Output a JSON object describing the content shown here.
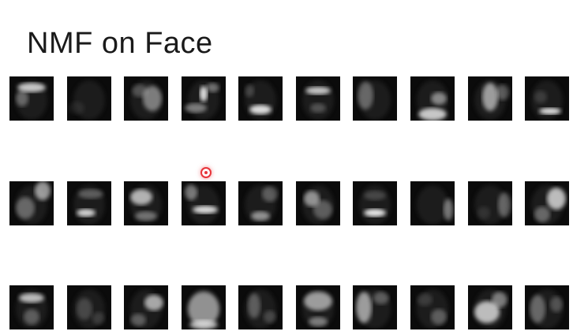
{
  "slide": {
    "title": "NMF on Face"
  },
  "face_grid": {
    "rows": 3,
    "columns": 10,
    "tile_background": "#0b0b0b",
    "highlight_color": "#f2f2f2",
    "components": [
      "basis-image-1",
      "basis-image-2",
      "basis-image-3",
      "basis-image-4",
      "basis-image-5",
      "basis-image-6",
      "basis-image-7",
      "basis-image-8",
      "basis-image-9",
      "basis-image-10",
      "basis-image-11",
      "basis-image-12",
      "basis-image-13",
      "basis-image-14",
      "basis-image-15",
      "basis-image-16",
      "basis-image-17",
      "basis-image-18",
      "basis-image-19",
      "basis-image-20",
      "basis-image-21",
      "basis-image-22",
      "basis-image-23",
      "basis-image-24",
      "basis-image-25",
      "basis-image-26",
      "basis-image-27",
      "basis-image-28",
      "basis-image-29",
      "basis-image-30"
    ]
  },
  "pointer": {
    "icon": "laser-pointer-icon",
    "color": "#e8343a"
  }
}
